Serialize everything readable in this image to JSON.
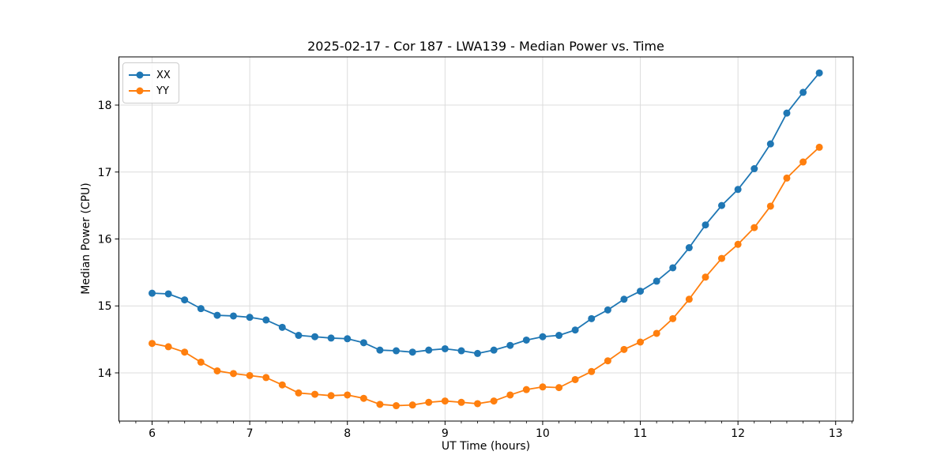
{
  "chart_data": {
    "type": "line",
    "title": "2025-02-17 - Cor 187 - LWA139 - Median Power vs. Time",
    "xlabel": "UT Time (hours)",
    "ylabel": "Median Power (CPU)",
    "x": [
      6.0,
      6.167,
      6.333,
      6.5,
      6.667,
      6.833,
      7.0,
      7.167,
      7.333,
      7.5,
      7.667,
      7.833,
      8.0,
      8.167,
      8.333,
      8.5,
      8.667,
      8.833,
      9.0,
      9.167,
      9.333,
      9.5,
      9.667,
      9.833,
      10.0,
      10.167,
      10.333,
      10.5,
      10.667,
      10.833,
      11.0,
      11.167,
      11.333,
      11.5,
      11.667,
      11.833,
      12.0,
      12.167,
      12.333,
      12.5,
      12.667,
      12.833
    ],
    "series": [
      {
        "name": "XX",
        "color": "#1f77b4",
        "marker": "circle",
        "values": [
          15.19,
          15.18,
          15.09,
          14.96,
          14.86,
          14.85,
          14.83,
          14.79,
          14.68,
          14.56,
          14.54,
          14.52,
          14.51,
          14.45,
          14.34,
          14.33,
          14.31,
          14.34,
          14.36,
          14.33,
          14.29,
          14.34,
          14.41,
          14.49,
          14.54,
          14.56,
          14.64,
          14.81,
          14.94,
          15.1,
          15.22,
          15.37,
          15.57,
          15.87,
          16.21,
          16.5,
          16.74,
          17.05,
          17.42,
          17.88,
          18.19,
          18.48
        ]
      },
      {
        "name": "YY",
        "color": "#ff7f0e",
        "marker": "circle",
        "values": [
          14.44,
          14.39,
          14.31,
          14.16,
          14.03,
          13.99,
          13.96,
          13.93,
          13.82,
          13.7,
          13.68,
          13.66,
          13.67,
          13.62,
          13.53,
          13.51,
          13.52,
          13.56,
          13.58,
          13.56,
          13.54,
          13.58,
          13.67,
          13.75,
          13.79,
          13.78,
          13.9,
          14.02,
          14.18,
          14.35,
          14.46,
          14.59,
          14.81,
          15.1,
          15.43,
          15.71,
          15.92,
          16.17,
          16.49,
          16.91,
          17.15,
          17.37
        ]
      }
    ],
    "xticks": [
      6,
      7,
      8,
      9,
      10,
      11,
      12,
      13
    ],
    "yticks": [
      14,
      15,
      16,
      17,
      18
    ],
    "xlim": [
      5.66,
      13.18
    ],
    "ylim": [
      13.28,
      18.72
    ],
    "x_minor_tick_step_hours": 0.1667,
    "grid": true,
    "legend_position": "upper left"
  },
  "style": {
    "background": "#ffffff",
    "grid_color": "#dcdcdc",
    "axis_color": "#000000",
    "text_color": "#000000"
  }
}
